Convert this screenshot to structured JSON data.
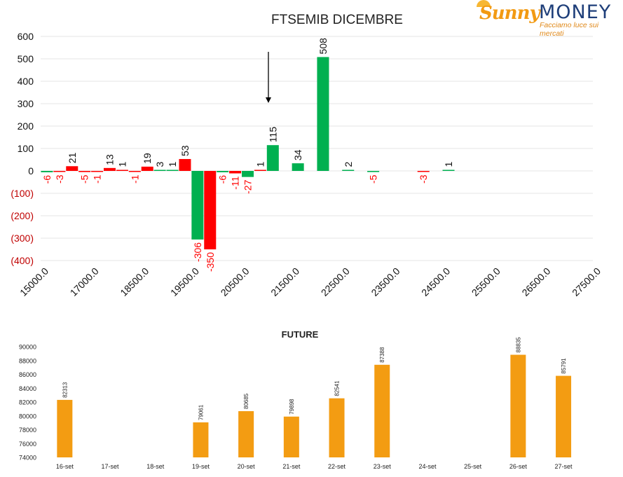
{
  "logo": {
    "brand_left": "Sunny",
    "brand_right": "MONEY",
    "tagline": "Facciamo luce sui mercati"
  },
  "colors": {
    "positive": "#00b050",
    "negative": "#ff0000",
    "future": "#f39c12",
    "text": "#222222",
    "neg_label": "#c00000"
  },
  "chart_data": [
    {
      "type": "bar",
      "title": "FTSEMIB DICEMBRE",
      "ylim": [
        -400,
        600
      ],
      "yticks": [
        600,
        500,
        400,
        300,
        200,
        100,
        0,
        -100,
        -200,
        -300,
        -400
      ],
      "ytick_labels": [
        "600",
        "500",
        "400",
        "300",
        "200",
        "100",
        "0",
        "(100)",
        "(200)",
        "(300)",
        "(400)"
      ],
      "xtick_labels": [
        "15000.0",
        "17000.0",
        "18500.0",
        "19500.0",
        "20500.0",
        "21500.0",
        "22500.0",
        "23500.0",
        "24500.0",
        "25500.0",
        "26500.0",
        "27500.0"
      ],
      "bars": [
        {
          "slot": 0,
          "series": "green",
          "value": -6
        },
        {
          "slot": 1,
          "series": "red",
          "value": -3
        },
        {
          "slot": 2,
          "series": "red",
          "value": 21
        },
        {
          "slot": 3,
          "series": "red",
          "value": -5
        },
        {
          "slot": 4,
          "series": "red",
          "value": -1
        },
        {
          "slot": 5,
          "series": "red",
          "value": 13
        },
        {
          "slot": 6,
          "series": "red",
          "value": 1
        },
        {
          "slot": 7,
          "series": "red",
          "value": -1
        },
        {
          "slot": 8,
          "series": "red",
          "value": 19
        },
        {
          "slot": 9,
          "series": "green",
          "value": 3
        },
        {
          "slot": 10,
          "series": "green",
          "value": 1
        },
        {
          "slot": 11,
          "series": "red",
          "value": 53
        },
        {
          "slot": 12,
          "series": "green",
          "value": -306
        },
        {
          "slot": 13,
          "series": "red",
          "value": -350
        },
        {
          "slot": 14,
          "series": "green",
          "value": -6
        },
        {
          "slot": 15,
          "series": "red",
          "value": -11
        },
        {
          "slot": 16,
          "series": "green",
          "value": -27
        },
        {
          "slot": 17,
          "series": "red",
          "value": 1
        },
        {
          "slot": 18,
          "series": "green",
          "value": 115
        },
        {
          "slot": 20,
          "series": "green",
          "value": 34
        },
        {
          "slot": 22,
          "series": "green",
          "value": 508
        },
        {
          "slot": 24,
          "series": "green",
          "value": 2
        },
        {
          "slot": 26,
          "series": "green",
          "value": -5
        },
        {
          "slot": 30,
          "series": "red",
          "value": -3
        },
        {
          "slot": 32,
          "series": "green",
          "value": 1
        }
      ]
    },
    {
      "type": "bar",
      "title": "FUTURE",
      "ylim": [
        74000,
        90000
      ],
      "yticks": [
        90000,
        88000,
        86000,
        84000,
        82000,
        80000,
        78000,
        76000,
        74000
      ],
      "categories": [
        "16-set",
        "17-set",
        "18-set",
        "19-set",
        "20-set",
        "21-set",
        "22-set",
        "23-set",
        "24-set",
        "25-set",
        "26-set",
        "27-set"
      ],
      "values": [
        82313,
        null,
        null,
        79061,
        80685,
        79898,
        82541,
        87388,
        null,
        null,
        88835,
        85791
      ]
    }
  ]
}
